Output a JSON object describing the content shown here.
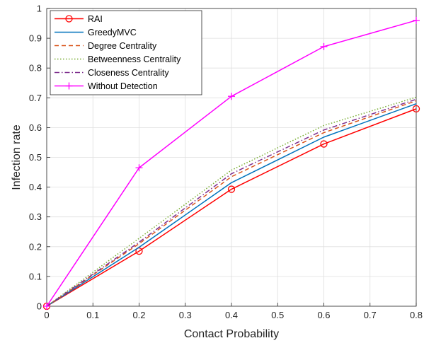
{
  "chart_data": {
    "type": "line",
    "xlabel": "Contact Probability",
    "ylabel": "Infection rate",
    "xlim": [
      0,
      0.8
    ],
    "ylim": [
      0,
      1
    ],
    "grid": true,
    "legend_position": "top-left",
    "x": [
      0,
      0.2,
      0.4,
      0.6,
      0.8
    ],
    "x_ticks": [
      "0",
      "0.1",
      "0.2",
      "0.3",
      "0.4",
      "0.5",
      "0.6",
      "0.7",
      "0.8"
    ],
    "y_ticks": [
      "0",
      "0.1",
      "0.2",
      "0.3",
      "0.4",
      "0.5",
      "0.6",
      "0.7",
      "0.8",
      "0.9",
      "1"
    ],
    "series": [
      {
        "name": "RAI",
        "values": [
          0,
          0.185,
          0.393,
          0.545,
          0.663
        ],
        "color": "#ff0000",
        "dash": "solid",
        "marker": "circle"
      },
      {
        "name": "GreedyMVC",
        "values": [
          0,
          0.198,
          0.415,
          0.568,
          0.68
        ],
        "color": "#0072bd",
        "dash": "solid",
        "marker": "none"
      },
      {
        "name": "Degree Centrality",
        "values": [
          0,
          0.21,
          0.435,
          0.583,
          0.69
        ],
        "color": "#d95319",
        "dash": "dashed",
        "marker": "none"
      },
      {
        "name": "Betweenness Centrality",
        "values": [
          0,
          0.228,
          0.457,
          0.607,
          0.702
        ],
        "color": "#77ac30",
        "dash": "dotted",
        "marker": "none"
      },
      {
        "name": "Closeness Centrality",
        "values": [
          0,
          0.215,
          0.445,
          0.592,
          0.695
        ],
        "color": "#7e2f8e",
        "dash": "dashdot",
        "marker": "none"
      },
      {
        "name": "Without Detection",
        "values": [
          0,
          0.465,
          0.705,
          0.872,
          0.96
        ],
        "color": "#ff00ff",
        "dash": "solid",
        "marker": "plus"
      }
    ]
  }
}
